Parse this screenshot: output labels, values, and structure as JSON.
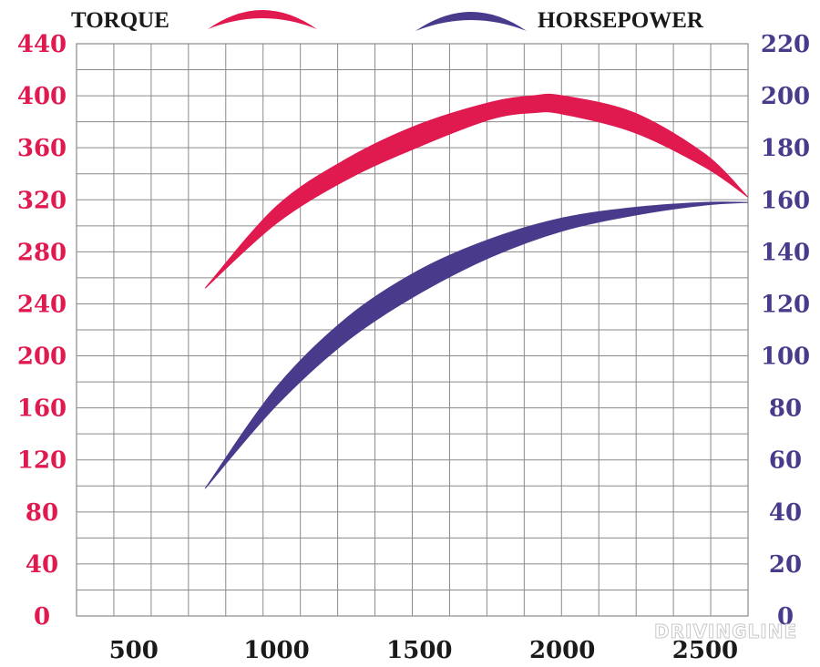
{
  "chart_data": {
    "type": "area",
    "legend": {
      "position": "top",
      "entries": [
        "TORQUE",
        "HORSEPOWER"
      ]
    },
    "xlabel": "",
    "ylabel_left": "",
    "ylabel_right": "",
    "x_ticks": [
      "500",
      "1000",
      "1500",
      "2000",
      "2500"
    ],
    "x_tick_values": [
      500,
      1000,
      1500,
      2000,
      2500
    ],
    "xlim": [
      300,
      2650
    ],
    "y_left_ticks": [
      "0",
      "40",
      "80",
      "120",
      "160",
      "200",
      "240",
      "280",
      "320",
      "360",
      "400",
      "440"
    ],
    "y_left_lim": [
      0,
      440
    ],
    "y_right_ticks": [
      "0",
      "20",
      "40",
      "60",
      "80",
      "100",
      "120",
      "140",
      "160",
      "180",
      "200",
      "220"
    ],
    "y_right_lim": [
      0,
      220
    ],
    "grid": true,
    "series": [
      {
        "name": "TORQUE",
        "axis": "left",
        "color": "#e0194f",
        "x": [
          750,
          1000,
          1250,
          1500,
          1750,
          1900,
          2000,
          2250,
          2500,
          2650
        ],
        "upper": [
          252,
          315,
          352,
          378,
          395,
          400,
          400,
          387,
          355,
          322
        ],
        "lower": [
          252,
          302,
          336,
          361,
          382,
          387,
          386,
          372,
          345,
          322
        ]
      },
      {
        "name": "HORSEPOWER",
        "axis": "right",
        "color": "#4a3a8c",
        "x": [
          750,
          1000,
          1250,
          1500,
          1750,
          2000,
          2250,
          2500,
          2650
        ],
        "upper": [
          49,
          88,
          115,
          133,
          145,
          153,
          157,
          159,
          159
        ],
        "lower": [
          49,
          81,
          106,
          124,
          138,
          148,
          154,
          158,
          159
        ]
      }
    ],
    "colors": {
      "left_axis": "#e0194f",
      "right_axis": "#4a3a8c",
      "grid": "#8a8a8a",
      "text": "#1a1a1a"
    }
  },
  "watermark": "DRIVINGLINE"
}
